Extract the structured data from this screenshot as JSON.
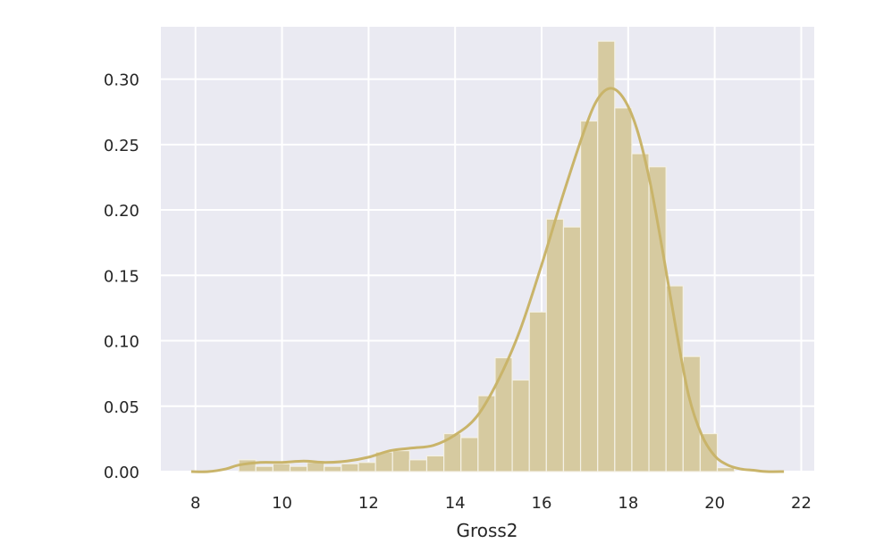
{
  "chart_data": {
    "type": "bar",
    "title": "",
    "xlabel": "Gross2",
    "ylabel": "",
    "xlim": [
      7.2,
      22.3
    ],
    "ylim": [
      0,
      0.34
    ],
    "x_ticks": [
      {
        "value": 8,
        "label": "8"
      },
      {
        "value": 10,
        "label": "10"
      },
      {
        "value": 12,
        "label": "12"
      },
      {
        "value": 14,
        "label": "14"
      },
      {
        "value": 16,
        "label": "16"
      },
      {
        "value": 18,
        "label": "18"
      },
      {
        "value": 20,
        "label": "20"
      },
      {
        "value": 22,
        "label": "22"
      }
    ],
    "y_ticks": [
      {
        "value": 0,
        "label": "0.00"
      },
      {
        "value": 0.05,
        "label": "0.05"
      },
      {
        "value": 0.1,
        "label": "0.10"
      },
      {
        "value": 0.15,
        "label": "0.15"
      },
      {
        "value": 0.2,
        "label": "0.20"
      },
      {
        "value": 0.25,
        "label": "0.25"
      },
      {
        "value": 0.3,
        "label": "0.30"
      }
    ],
    "grid": true,
    "histogram": {
      "bin_start": 9.0,
      "bin_width": 0.395,
      "values": [
        0.009,
        0.004,
        0.006,
        0.004,
        0.007,
        0.004,
        0.006,
        0.007,
        0.015,
        0.016,
        0.009,
        0.012,
        0.029,
        0.026,
        0.058,
        0.087,
        0.07,
        0.122,
        0.193,
        0.187,
        0.268,
        0.329,
        0.278,
        0.243,
        0.233,
        0.142,
        0.088,
        0.029,
        0.003
      ]
    },
    "kde": {
      "x": [
        7.9,
        8.3,
        8.7,
        9.0,
        9.5,
        10.0,
        10.5,
        11.0,
        11.5,
        12.0,
        12.5,
        13.0,
        13.5,
        14.0,
        14.5,
        15.0,
        15.5,
        16.0,
        16.5,
        17.0,
        17.3,
        17.6,
        17.9,
        18.2,
        18.5,
        18.8,
        19.1,
        19.4,
        19.7,
        20.0,
        20.3,
        20.6,
        20.9,
        21.2,
        21.6
      ],
      "y": [
        0.0,
        0.0,
        0.002,
        0.005,
        0.007,
        0.007,
        0.008,
        0.007,
        0.008,
        0.011,
        0.016,
        0.018,
        0.02,
        0.028,
        0.042,
        0.07,
        0.108,
        0.158,
        0.212,
        0.262,
        0.285,
        0.293,
        0.285,
        0.262,
        0.222,
        0.168,
        0.11,
        0.058,
        0.028,
        0.012,
        0.005,
        0.002,
        0.001,
        0.0,
        0.0
      ]
    },
    "colors": {
      "background": "#eaeaf2",
      "grid": "#ffffff",
      "bar": "#d6caa0",
      "bar_edge": "#f4f1e6",
      "kde_line": "#c9b46a",
      "text": "#262626"
    }
  }
}
